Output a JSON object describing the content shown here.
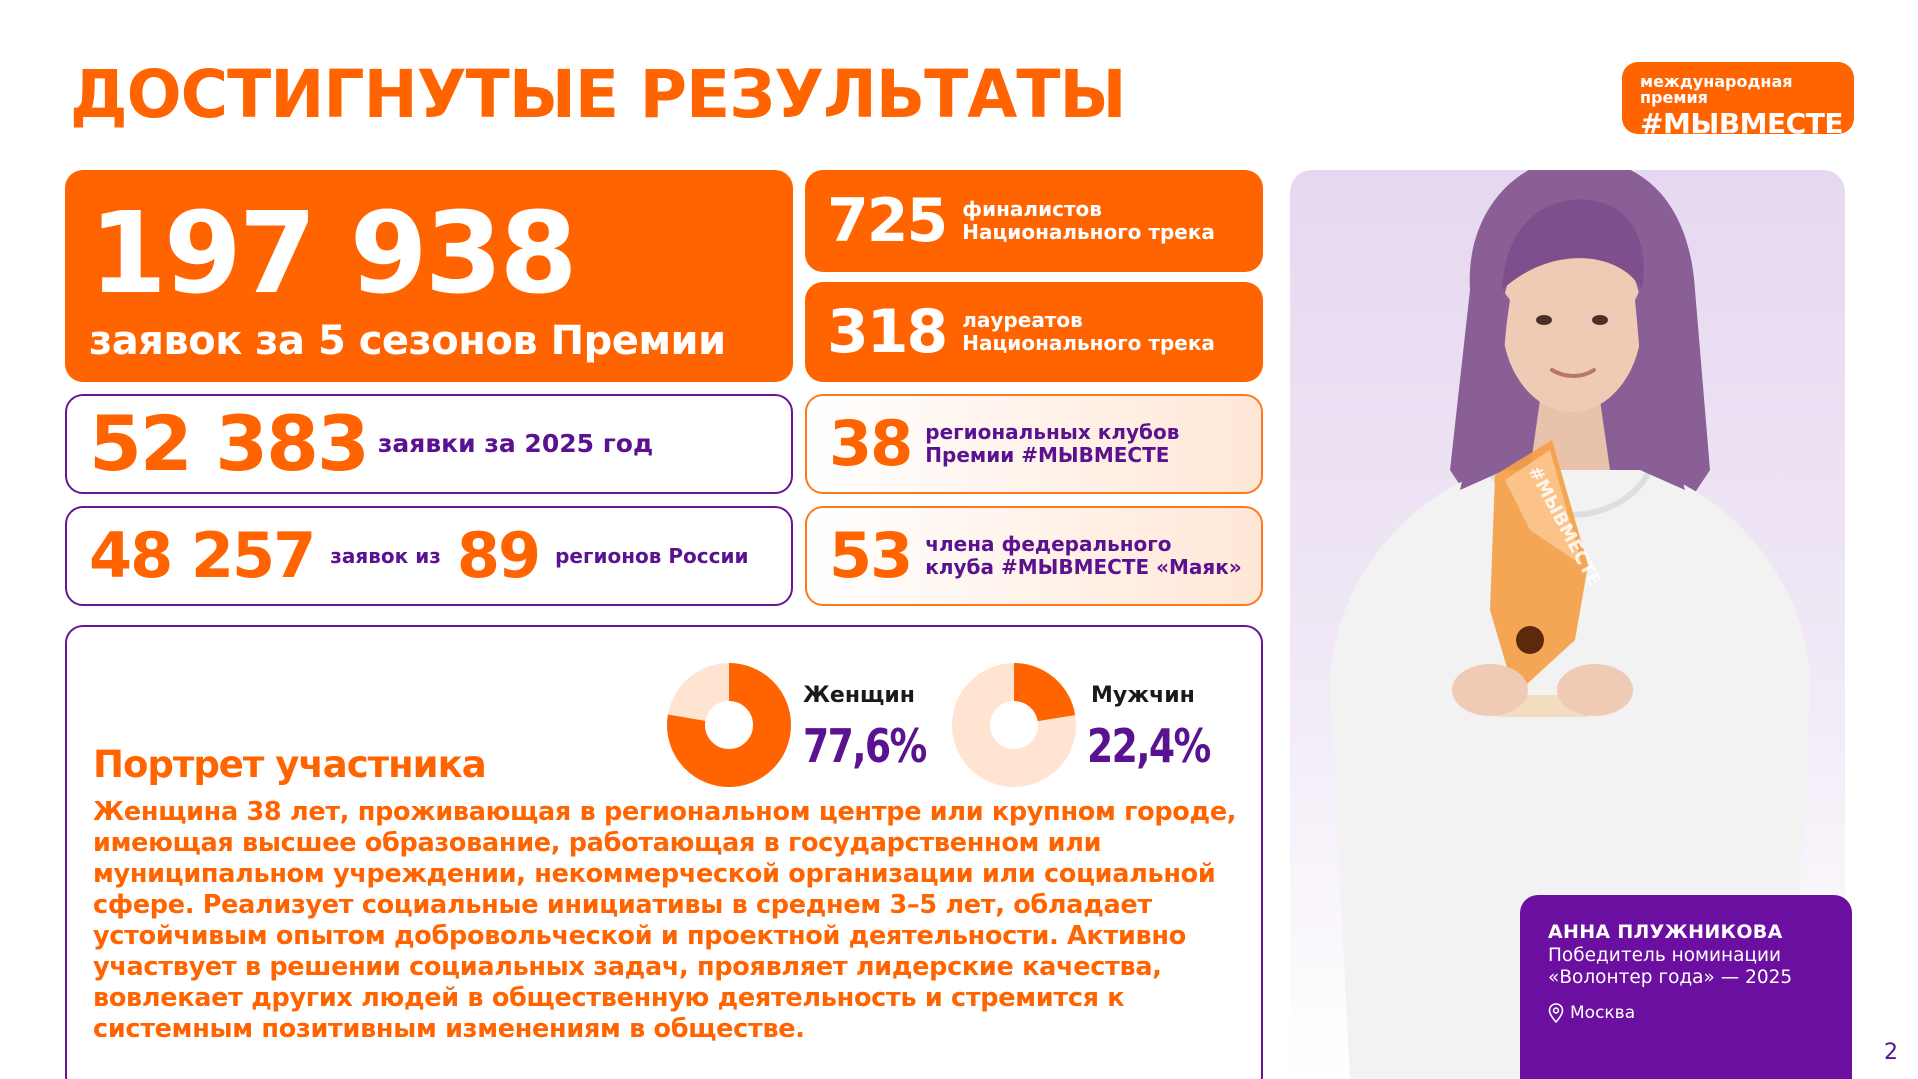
{
  "header": {
    "title": "ДОСТИГНУТЫЕ РЕЗУЛЬТАТЫ",
    "logo": {
      "line1": "международная премия",
      "line2": "#МЫВМЕСТЕ"
    }
  },
  "stats": {
    "total": {
      "value": "197 938",
      "label": "заявок за 5 сезонов Премии"
    },
    "finalists": {
      "value": "725",
      "label_1": "финалистов",
      "label_2": "Национального трека"
    },
    "laureates": {
      "value": "318",
      "label_1": "лауреатов",
      "label_2": "Национального трека"
    },
    "applications_2025": {
      "value": "52 383",
      "label": "заявки за 2025 год"
    },
    "regions": {
      "value": "48 257",
      "label_1": "заявок из",
      "value_2": "89",
      "label_2": "регионов России"
    },
    "clubs": {
      "value": "38",
      "label_1": "региональных клубов",
      "label_2": "Премии #МЫВМЕСТЕ"
    },
    "members": {
      "value": "53",
      "label_1": "члена федерального",
      "label_2": "клуба #МЫВМЕСТЕ «Маяк»"
    }
  },
  "portrait": {
    "title": "Портрет участника",
    "text": "Женщина 38 лет, проживающая в региональном центре или крупном городе, имеющая высшее образование, работающая в государственном или муниципальном учреждении, некоммерческой организации или социальной сфере. Реализует социальные инициативы в среднем 3–5 лет, обладает устойчивым опытом добровольческой и проектной деятельности. Активно участвует в решении социальных задач, проявляет лидерские качества, вовлекает других людей в общественную деятельность и стремится к системным позитивным изменениям в обществе.",
    "women": {
      "label": "Женщин",
      "value": "77,6%",
      "fraction": 0.776
    },
    "men": {
      "label": "Мужчин",
      "value": "22,4%",
      "fraction": 0.224
    }
  },
  "caption": {
    "name": "АННА ПЛУЖНИКОВА",
    "role_1": "Победитель номинации",
    "role_2": "«Волонтер года» — 2025",
    "city": "Москва"
  },
  "trophy_text": "#МЫВМЕСТЕ",
  "page_number": "2",
  "colors": {
    "orange": "#ff6400",
    "purple": "#5a1290",
    "peach": "#ffe7d6"
  }
}
